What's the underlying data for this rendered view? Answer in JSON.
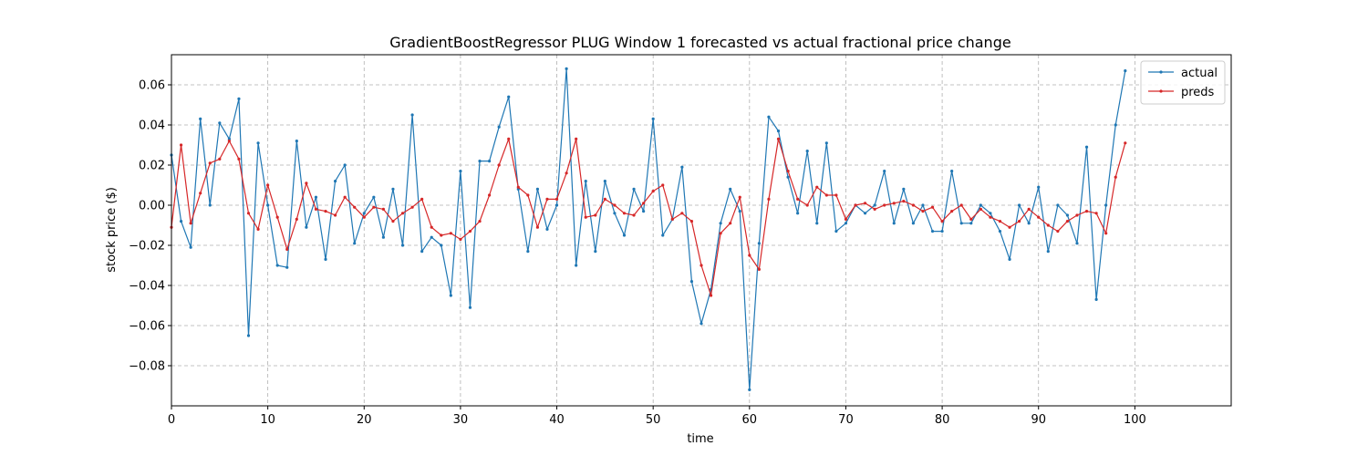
{
  "chart_data": {
    "type": "line",
    "title": "GradientBoostRegressor PLUG Window 1 forecasted vs actual fractional price change",
    "xlabel": "time",
    "ylabel": "stock price ($)",
    "xlim": [
      0,
      110
    ],
    "ylim": [
      -0.1,
      0.075
    ],
    "xticks": [
      0,
      10,
      20,
      30,
      40,
      50,
      60,
      70,
      80,
      90,
      100
    ],
    "yticks": [
      -0.08,
      -0.06,
      -0.04,
      -0.02,
      0.0,
      0.02,
      0.04,
      0.06
    ],
    "ytick_labels": [
      "−0.08",
      "−0.06",
      "−0.04",
      "−0.02",
      "0.00",
      "0.02",
      "0.04",
      "0.06"
    ],
    "grid": true,
    "legend_position": "top-right",
    "series": [
      {
        "name": "actual",
        "color": "#1f77b4",
        "values": [
          0.025,
          -0.008,
          -0.021,
          0.043,
          0.0,
          0.041,
          0.033,
          0.053,
          -0.065,
          0.031,
          0.0,
          -0.03,
          -0.031,
          0.032,
          -0.011,
          0.004,
          -0.027,
          0.012,
          0.02,
          -0.019,
          -0.004,
          0.004,
          -0.016,
          0.008,
          -0.02,
          0.045,
          -0.023,
          -0.016,
          -0.02,
          -0.045,
          0.017,
          -0.051,
          0.022,
          0.022,
          0.039,
          0.054,
          0.008,
          -0.023,
          0.008,
          -0.012,
          0.0,
          0.068,
          -0.03,
          0.012,
          -0.023,
          0.012,
          -0.004,
          -0.015,
          0.008,
          -0.003,
          0.043,
          -0.015,
          -0.007,
          0.019,
          -0.038,
          -0.059,
          -0.042,
          -0.009,
          0.008,
          -0.003,
          -0.092,
          -0.019,
          0.044,
          0.037,
          0.014,
          -0.004,
          0.027,
          -0.009,
          0.031,
          -0.013,
          -0.009,
          0.0,
          -0.004,
          0.0,
          0.017,
          -0.009,
          0.008,
          -0.009,
          0.0,
          -0.013,
          -0.013,
          0.017,
          -0.009,
          -0.009,
          0.0,
          -0.004,
          -0.013,
          -0.027,
          0.0,
          -0.009,
          0.009,
          -0.023,
          0.0,
          -0.005,
          -0.019,
          0.029,
          -0.047,
          0.0,
          0.04,
          0.067
        ]
      },
      {
        "name": "preds",
        "color": "#d62728",
        "values": [
          -0.011,
          0.03,
          -0.009,
          0.006,
          0.021,
          0.023,
          0.032,
          0.023,
          -0.004,
          -0.012,
          0.01,
          -0.006,
          -0.022,
          -0.007,
          0.011,
          -0.002,
          -0.003,
          -0.005,
          0.004,
          -0.001,
          -0.006,
          -0.001,
          -0.002,
          -0.008,
          -0.004,
          -0.001,
          0.003,
          -0.011,
          -0.015,
          -0.014,
          -0.017,
          -0.013,
          -0.008,
          0.005,
          0.02,
          0.033,
          0.009,
          0.005,
          -0.011,
          0.003,
          0.003,
          0.016,
          0.033,
          -0.006,
          -0.005,
          0.003,
          0.0,
          -0.004,
          -0.005,
          0.001,
          0.007,
          0.01,
          -0.007,
          -0.004,
          -0.008,
          -0.03,
          -0.045,
          -0.014,
          -0.009,
          0.004,
          -0.025,
          -0.032,
          0.003,
          0.033,
          0.017,
          0.003,
          0.0,
          0.009,
          0.005,
          0.005,
          -0.007,
          0.0,
          0.001,
          -0.002,
          0.0,
          0.001,
          0.002,
          0.0,
          -0.003,
          -0.001,
          -0.008,
          -0.003,
          0.0,
          -0.007,
          -0.002,
          -0.006,
          -0.008,
          -0.011,
          -0.008,
          -0.002,
          -0.006,
          -0.01,
          -0.013,
          -0.008,
          -0.005,
          -0.003,
          -0.004,
          -0.014,
          0.014,
          0.031
        ]
      }
    ]
  }
}
